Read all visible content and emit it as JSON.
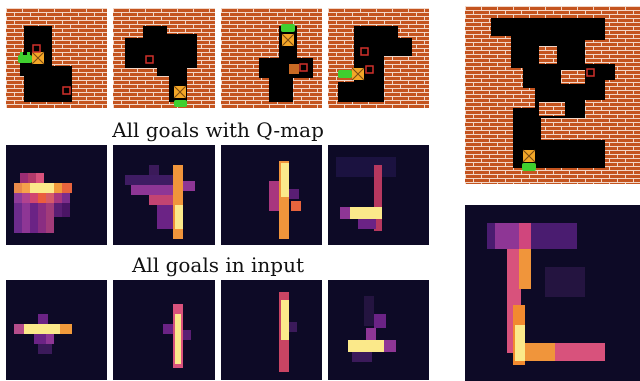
{
  "captions": {
    "q_map": "All goals with Q-map",
    "input": "All goals in input"
  },
  "colors": {
    "brick": "#c4541f",
    "mortar": "#f2d7c8",
    "floor": "#000000",
    "agent": "#3fcf2f",
    "box": "#f3a728",
    "goal_marker": "#d0302a",
    "heat_background": "#0d0a26"
  },
  "icons": [
    "agent-icon",
    "box-icon",
    "goal-marker-icon"
  ],
  "rows": [
    {
      "name": "environments",
      "panel_count": 4
    },
    {
      "name": "q-map-heatmaps",
      "panel_count": 4
    },
    {
      "name": "input-heatmaps",
      "panel_count": 4
    }
  ],
  "large_panels": [
    {
      "name": "large-environment"
    },
    {
      "name": "large-heatmap"
    }
  ]
}
